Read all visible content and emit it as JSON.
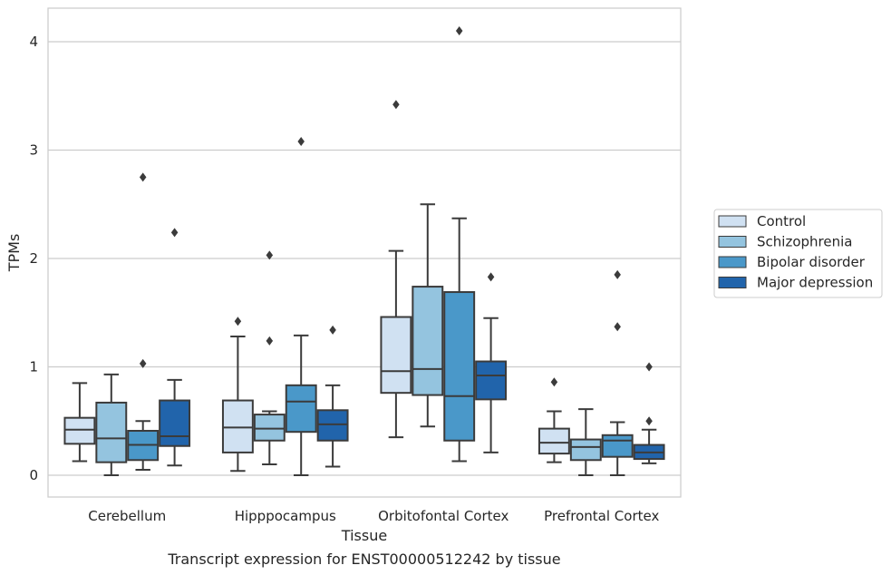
{
  "caption": "Transcript expression for ENST00000512242 by tissue",
  "chart_data": {
    "type": "boxplot",
    "xlabel": "Tissue",
    "ylabel": "TPMs",
    "ylim": [
      -0.2,
      4.3
    ],
    "yticks": [
      0,
      1,
      2,
      3,
      4
    ],
    "grid": true,
    "legend_position": "right",
    "categories": [
      "Cerebellum",
      "Hipppocampus",
      "Orbitofontal Cortex",
      "Prefrontal Cortex"
    ],
    "series": [
      {
        "name": "Control",
        "color": "#d0e1f2",
        "boxes": [
          {
            "whislo": 0.13,
            "q1": 0.29,
            "med": 0.42,
            "q3": 0.53,
            "whishi": 0.85,
            "fliers": []
          },
          {
            "whislo": 0.04,
            "q1": 0.21,
            "med": 0.44,
            "q3": 0.69,
            "whishi": 1.28,
            "fliers": [
              1.42
            ]
          },
          {
            "whislo": 0.35,
            "q1": 0.76,
            "med": 0.96,
            "q3": 1.46,
            "whishi": 2.07,
            "fliers": [
              3.42
            ]
          },
          {
            "whislo": 0.12,
            "q1": 0.2,
            "med": 0.3,
            "q3": 0.43,
            "whishi": 0.59,
            "fliers": [
              0.86
            ]
          }
        ]
      },
      {
        "name": "Schizophrenia",
        "color": "#94c4df",
        "boxes": [
          {
            "whislo": 0.0,
            "q1": 0.12,
            "med": 0.34,
            "q3": 0.67,
            "whishi": 0.93,
            "fliers": []
          },
          {
            "whislo": 0.1,
            "q1": 0.32,
            "med": 0.43,
            "q3": 0.56,
            "whishi": 0.59,
            "fliers": [
              1.24,
              2.03
            ]
          },
          {
            "whislo": 0.45,
            "q1": 0.74,
            "med": 0.98,
            "q3": 1.74,
            "whishi": 2.5,
            "fliers": []
          },
          {
            "whislo": 0.0,
            "q1": 0.14,
            "med": 0.26,
            "q3": 0.33,
            "whishi": 0.61,
            "fliers": []
          }
        ]
      },
      {
        "name": "Bipolar disorder",
        "color": "#4a98c9",
        "boxes": [
          {
            "whislo": 0.05,
            "q1": 0.14,
            "med": 0.28,
            "q3": 0.41,
            "whishi": 0.5,
            "fliers": [
              1.03,
              2.75
            ]
          },
          {
            "whislo": 0.0,
            "q1": 0.4,
            "med": 0.68,
            "q3": 0.83,
            "whishi": 1.29,
            "fliers": [
              3.08
            ]
          },
          {
            "whislo": 0.13,
            "q1": 0.32,
            "med": 0.73,
            "q3": 1.69,
            "whishi": 2.37,
            "fliers": [
              4.1
            ]
          },
          {
            "whislo": 0.0,
            "q1": 0.17,
            "med": 0.32,
            "q3": 0.37,
            "whishi": 0.49,
            "fliers": [
              1.37,
              1.85
            ]
          }
        ]
      },
      {
        "name": "Major depression",
        "color": "#2164ab",
        "boxes": [
          {
            "whislo": 0.09,
            "q1": 0.27,
            "med": 0.36,
            "q3": 0.69,
            "whishi": 0.88,
            "fliers": [
              2.24
            ]
          },
          {
            "whislo": 0.08,
            "q1": 0.32,
            "med": 0.47,
            "q3": 0.6,
            "whishi": 0.83,
            "fliers": [
              1.34
            ]
          },
          {
            "whislo": 0.21,
            "q1": 0.7,
            "med": 0.92,
            "q3": 1.05,
            "whishi": 1.45,
            "fliers": [
              1.83
            ]
          },
          {
            "whislo": 0.11,
            "q1": 0.15,
            "med": 0.21,
            "q3": 0.28,
            "whishi": 0.42,
            "fliers": [
              0.5,
              1.0
            ]
          }
        ]
      }
    ]
  }
}
